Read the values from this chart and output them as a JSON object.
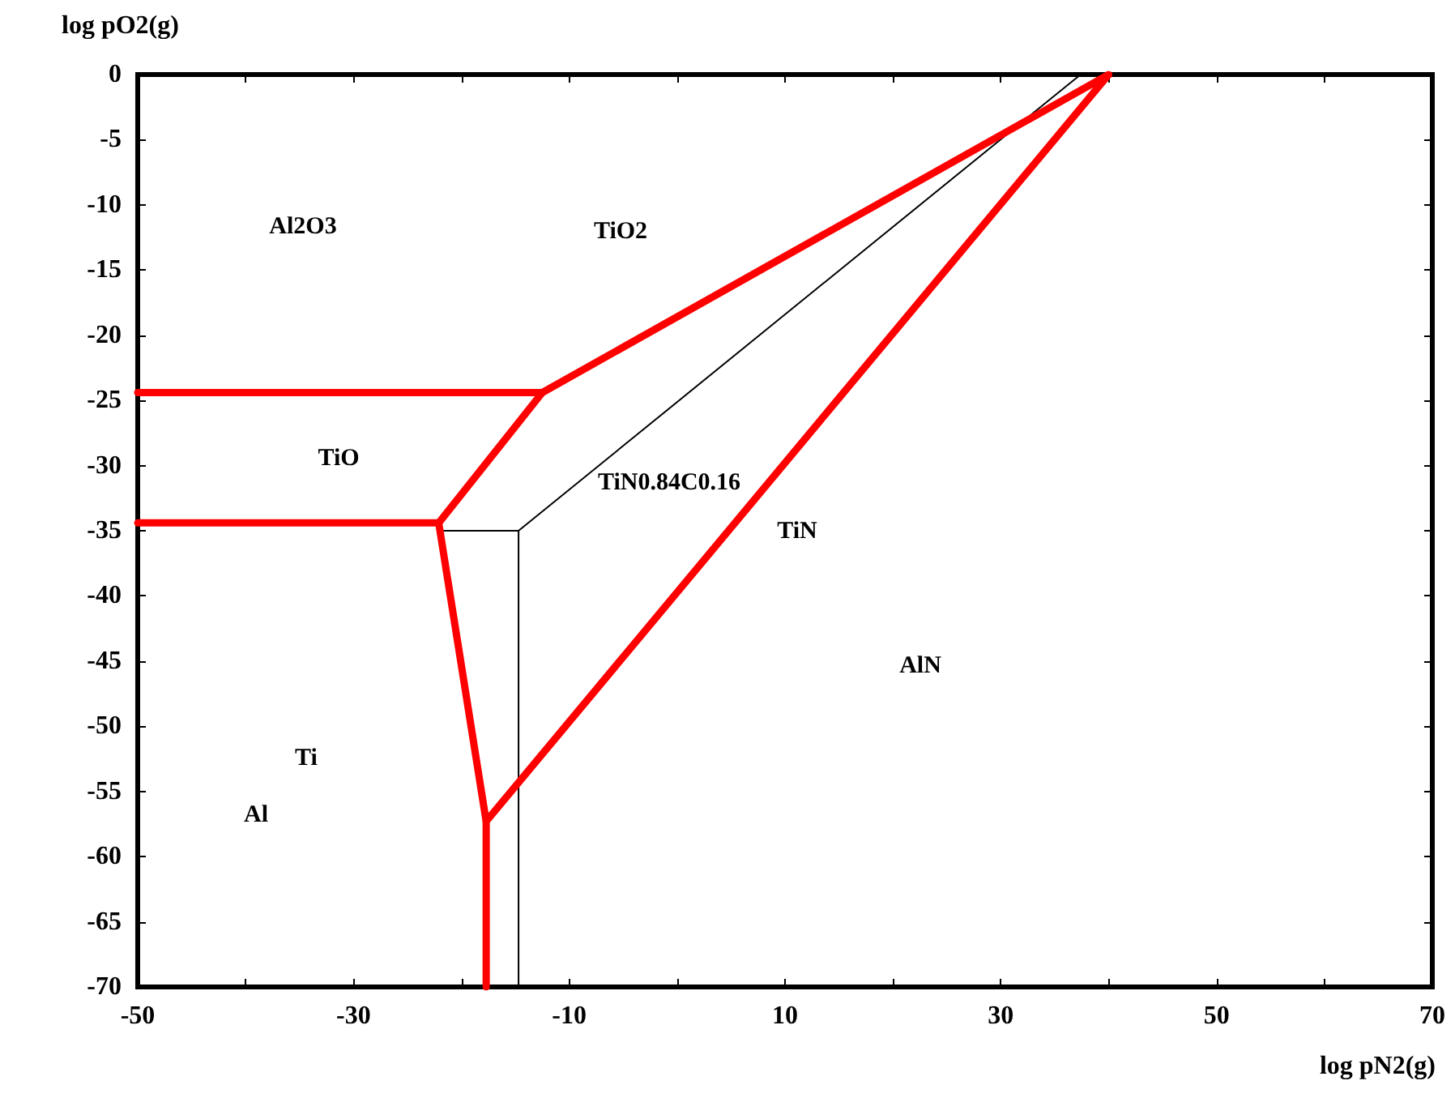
{
  "chart_data": {
    "type": "line",
    "xlabel": "log pN2(g)",
    "ylabel": "log pO2(g)",
    "xlim": [
      -50,
      70
    ],
    "ylim": [
      -70,
      0
    ],
    "xticks": [
      -50,
      {
        "value": -40,
        "label": null
      },
      -30,
      {
        "value": -20,
        "label": null
      },
      -10,
      {
        "value": 0,
        "label": null
      },
      10,
      {
        "value": 20,
        "label": null
      },
      30,
      {
        "value": 40,
        "label": null
      },
      50,
      {
        "value": 60,
        "label": null
      },
      70
    ],
    "yticks": [
      -70,
      -65,
      -60,
      -55,
      -50,
      -45,
      -40,
      -35,
      -30,
      -25,
      -20,
      -15,
      -10,
      -5,
      0
    ],
    "grid": false,
    "marker": "none",
    "line_style": "solid",
    "series": [
      {
        "color": "#000000",
        "x": [
          -14.7,
          -14.7,
          37.4
        ],
        "values": [
          -70,
          -35,
          0
        ]
      },
      {
        "color": "#000000",
        "x": [
          -22.1,
          -14.7
        ],
        "values": [
          -35,
          -35
        ]
      },
      {
        "color": "#ff0000",
        "x": [
          -50,
          -12.5,
          40,
          -17.7,
          -17.7
        ],
        "values": [
          -24.4,
          -24.4,
          0,
          -57.3,
          -70
        ]
      },
      {
        "color": "#ff0000",
        "x": [
          -50,
          -22.1,
          -12.5
        ],
        "values": [
          -34.4,
          -34.4,
          -24.4
        ]
      },
      {
        "color": "#ff0000",
        "x": [
          -22.1,
          -17.7
        ],
        "values": [
          -34.4,
          -57.3
        ]
      }
    ],
    "annotations": [
      "Al2O3",
      "TiO2",
      "TiO",
      "TiN0.84C0.16",
      "TiN",
      "AlN",
      "Ti",
      "Al"
    ]
  }
}
